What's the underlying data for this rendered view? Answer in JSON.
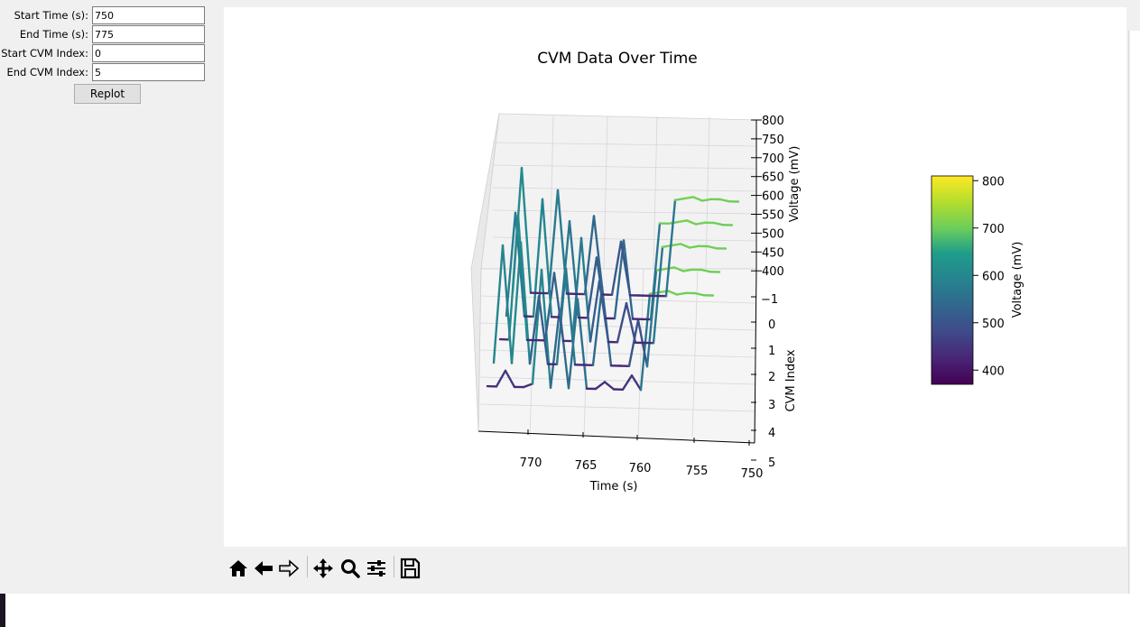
{
  "form": {
    "start_time": {
      "label": "Start Time (s):",
      "value": "750"
    },
    "end_time": {
      "label": "End Time (s):",
      "value": "775"
    },
    "start_cvm": {
      "label": "Start CVM Index:",
      "value": "0"
    },
    "end_cvm": {
      "label": "End CVM Index:",
      "value": "5"
    },
    "replot_label": "Replot"
  },
  "toolbar": {
    "buttons": [
      {
        "name": "home-icon",
        "enabled": true
      },
      {
        "name": "back-arrow-icon",
        "enabled": true
      },
      {
        "name": "forward-arrow-icon",
        "enabled": false
      },
      {
        "name": "pan-move-icon",
        "enabled": true
      },
      {
        "name": "zoom-magnifier-icon",
        "enabled": true
      },
      {
        "name": "configure-subplots-icon",
        "enabled": true
      },
      {
        "name": "save-disk-icon",
        "enabled": true
      }
    ]
  },
  "chart_data": {
    "type": "line",
    "projection": "3d",
    "title": "CVM Data Over Time",
    "xlabel": "Time (s)",
    "ylabel": "CVM Index",
    "zlabel": "Voltage (mV)",
    "x_ticks": [
      "770",
      "765",
      "760",
      "755",
      "750"
    ],
    "y_ticks": [
      "−1",
      "0",
      "1",
      "2",
      "3",
      "4",
      "5"
    ],
    "z_ticks": [
      "800",
      "750",
      "700",
      "650",
      "600",
      "550",
      "500",
      "450",
      "400"
    ],
    "xlim": [
      775,
      750
    ],
    "ylim": [
      -1,
      5
    ],
    "zlim": [
      400,
      800
    ],
    "colormap": "viridis",
    "colorbar": {
      "label": "Voltage (mV)",
      "ticks": [
        "800",
        "700",
        "600",
        "500",
        "400"
      ],
      "range": [
        370,
        810
      ]
    },
    "colors": {
      "viridis_low": "#440154",
      "viridis_mid": "#21918c",
      "viridis_high": "#fde725"
    },
    "series": [
      {
        "cvm_index": 0,
        "time": [
          775,
          774,
          773,
          772,
          771,
          770,
          769,
          768,
          767,
          766,
          765,
          764,
          763,
          762,
          761,
          760,
          759,
          758,
          757,
          756,
          755,
          754,
          753,
          752,
          751,
          750
        ],
        "voltage": [
          430,
          430,
          475,
          430,
          430,
          440,
          760,
          430,
          650,
          430,
          680,
          430,
          430,
          450,
          430,
          430,
          470,
          430,
          700,
          705,
          710,
          700,
          705,
          705,
          700,
          700
        ]
      },
      {
        "cvm_index": 1,
        "time": [
          775,
          774,
          773,
          772,
          771,
          770,
          769,
          768,
          767,
          766,
          765,
          764,
          763,
          762,
          761,
          760,
          759,
          758,
          757,
          756,
          755,
          754,
          753,
          752,
          751,
          750
        ],
        "voltage": [
          430,
          760,
          430,
          770,
          430,
          620,
          430,
          430,
          700,
          430,
          430,
          430,
          650,
          430,
          430,
          430,
          560,
          430,
          700,
          705,
          710,
          700,
          705,
          705,
          700,
          700
        ]
      },
      {
        "cvm_index": 2,
        "time": [
          775,
          774,
          773,
          772,
          771,
          770,
          769,
          768,
          767,
          766,
          765,
          764,
          763,
          762,
          761,
          760,
          759,
          758,
          757,
          756,
          755,
          754,
          753,
          752,
          751,
          750
        ],
        "voltage": [
          430,
          430,
          780,
          430,
          430,
          430,
          620,
          430,
          430,
          720,
          430,
          600,
          430,
          430,
          540,
          430,
          430,
          430,
          700,
          705,
          710,
          700,
          705,
          705,
          700,
          700
        ]
      },
      {
        "cvm_index": 3,
        "time": [
          775,
          774,
          773,
          772,
          771,
          770,
          769,
          768,
          767,
          766,
          765,
          764,
          763,
          762,
          761,
          760,
          759,
          758,
          757,
          756,
          755,
          754,
          753,
          752,
          751,
          750
        ],
        "voltage": [
          430,
          720,
          430,
          430,
          760,
          430,
          430,
          700,
          430,
          430,
          600,
          430,
          430,
          650,
          430,
          430,
          430,
          700,
          700,
          705,
          710,
          700,
          705,
          705,
          700,
          700
        ]
      },
      {
        "cvm_index": 4,
        "time": [
          775,
          774,
          773,
          772,
          771,
          770,
          769,
          768,
          767,
          766,
          765,
          764,
          763,
          762,
          761,
          760,
          759,
          758,
          757,
          756,
          755,
          754,
          753,
          752,
          751,
          750
        ],
        "voltage": [
          430,
          780,
          430,
          430,
          430,
          720,
          430,
          430,
          430,
          650,
          430,
          430,
          580,
          430,
          430,
          430,
          430,
          430,
          700,
          705,
          710,
          700,
          705,
          705,
          700,
          700
        ]
      }
    ]
  }
}
